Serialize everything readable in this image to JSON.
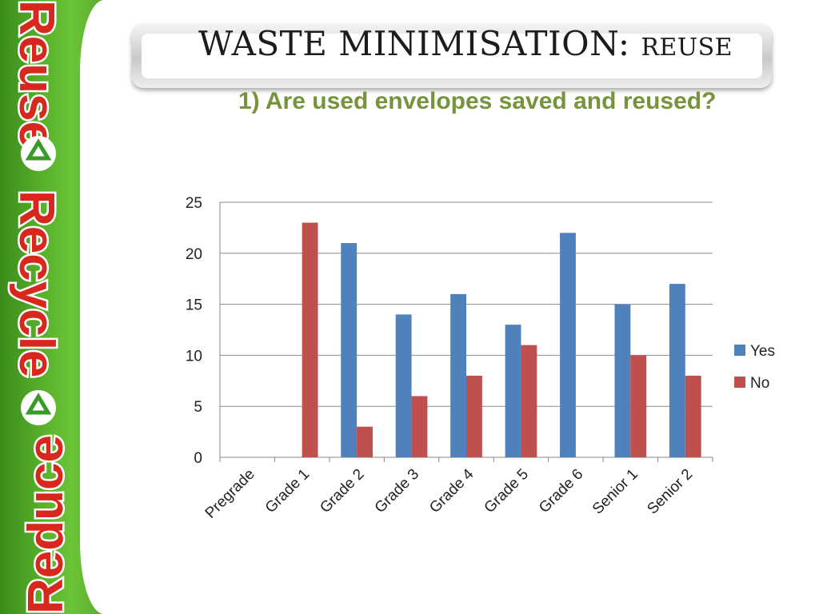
{
  "banner": {
    "words": [
      "Reduce",
      "Recycle",
      "Reuse"
    ]
  },
  "header": {
    "title_main": "WASTE MINIMISATION: ",
    "title_sub": "REUSE",
    "subtitle": "1) Are used envelopes saved and reused?"
  },
  "colors": {
    "yes": "#4f81bd",
    "no": "#c0504d",
    "subtitle": "#77933c",
    "banner_green": "#58b02a",
    "banner_text": "#d8281e"
  },
  "chart_data": {
    "type": "bar",
    "title": "",
    "xlabel": "",
    "ylabel": "",
    "categories": [
      "Pregrade",
      "Grade 1",
      "Grade 2",
      "Grade 3",
      "Grade 4",
      "Grade 5",
      "Grade 6",
      "Senior 1",
      "Senior 2"
    ],
    "series": [
      {
        "name": "Yes",
        "values": [
          0,
          0,
          21,
          14,
          16,
          13,
          22,
          15,
          17
        ]
      },
      {
        "name": "No",
        "values": [
          0,
          23,
          3,
          6,
          8,
          11,
          0,
          10,
          8
        ]
      }
    ],
    "ylim": [
      0,
      25
    ],
    "yticks": [
      0,
      5,
      10,
      15,
      20,
      25
    ],
    "grid": true,
    "legend": "right"
  }
}
